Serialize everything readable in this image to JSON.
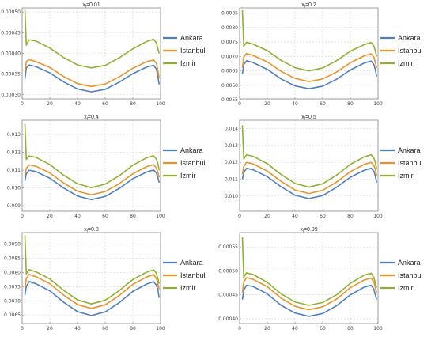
{
  "figure": {
    "series": [
      {
        "name": "Ankara",
        "color": "#4f7fbf"
      },
      {
        "name": "Istanbul",
        "color": "#e8932a"
      },
      {
        "name": "Izmir",
        "color": "#8fb032"
      }
    ]
  },
  "chart_data": [
    {
      "type": "line",
      "title": "xₗ=0.01",
      "title_sub": "l",
      "title_value": "0.01",
      "xlim": [
        0,
        100
      ],
      "xticks": [
        0,
        20,
        40,
        60,
        80,
        100
      ],
      "ylim": [
        0.00029,
        0.00051
      ],
      "yticks": [
        "0.00030",
        "0.00035",
        "0.00040",
        "0.00045",
        "0.00050"
      ],
      "yticks_num": [
        0.0003,
        0.00035,
        0.0004,
        0.00045,
        0.0005
      ],
      "legend": "right",
      "grid": true,
      "x": [
        2,
        3,
        5,
        10,
        20,
        30,
        40,
        50,
        60,
        70,
        80,
        90,
        95,
        97,
        98,
        99
      ],
      "series": [
        {
          "name": "Ankara",
          "values": [
            0.000338,
            0.000365,
            0.000372,
            0.000368,
            0.000353,
            0.000331,
            0.000314,
            0.000307,
            0.000313,
            0.00033,
            0.000351,
            0.000367,
            0.000371,
            0.000362,
            0.000345,
            0.000325
          ]
        },
        {
          "name": "Istanbul",
          "values": [
            0.000355,
            0.00038,
            0.000385,
            0.00038,
            0.000366,
            0.000344,
            0.000327,
            0.00032,
            0.000326,
            0.000343,
            0.000364,
            0.00038,
            0.000384,
            0.000376,
            0.00036,
            0.00034
          ]
        },
        {
          "name": "Izmir",
          "values": [
            0.000505,
            0.00042,
            0.000433,
            0.00043,
            0.000413,
            0.00039,
            0.000372,
            0.000365,
            0.000371,
            0.000389,
            0.000411,
            0.000429,
            0.000434,
            0.000425,
            0.000412,
            0.0004
          ]
        }
      ]
    },
    {
      "type": "line",
      "title": "xₗ=0.2",
      "title_sub": "l",
      "title_value": "0.2",
      "xlim": [
        0,
        100
      ],
      "xticks": [
        0,
        20,
        40,
        60,
        80,
        100
      ],
      "ylim": [
        0.00553,
        0.00868
      ],
      "yticks": [
        "0.0055",
        "0.0060",
        "0.0065",
        "0.0070",
        "0.0075",
        "0.0080",
        "0.0085"
      ],
      "yticks_num": [
        0.0055,
        0.006,
        0.0065,
        0.007,
        0.0075,
        0.008,
        0.0085
      ],
      "legend": "right",
      "grid": true,
      "x": [
        2,
        3,
        5,
        10,
        20,
        30,
        40,
        50,
        60,
        70,
        80,
        90,
        95,
        97,
        98,
        99
      ],
      "series": [
        {
          "name": "Ankara",
          "values": [
            0.0064,
            0.00672,
            0.00685,
            0.00678,
            0.00655,
            0.00622,
            0.00598,
            0.00588,
            0.00597,
            0.00621,
            0.00653,
            0.00677,
            0.00684,
            0.00672,
            0.00655,
            0.0063
          ]
        },
        {
          "name": "Istanbul",
          "values": [
            0.0066,
            0.00698,
            0.0071,
            0.00703,
            0.00681,
            0.00648,
            0.00624,
            0.00613,
            0.00622,
            0.00646,
            0.00678,
            0.00702,
            0.00709,
            0.00697,
            0.0068,
            0.0066
          ]
        },
        {
          "name": "Izmir",
          "values": [
            0.0086,
            0.00735,
            0.00749,
            0.00742,
            0.0072,
            0.00686,
            0.00661,
            0.0065,
            0.0066,
            0.00685,
            0.00718,
            0.00741,
            0.00748,
            0.00736,
            0.0072,
            0.007
          ]
        }
      ]
    },
    {
      "type": "line",
      "title": "xₗ=0.4",
      "title_sub": "l",
      "title_value": "0.4",
      "xlim": [
        0,
        100
      ],
      "xticks": [
        0,
        20,
        40,
        60,
        80,
        100
      ],
      "ylim": [
        0.0087,
        0.0138
      ],
      "yticks": [
        "0.009",
        "0.010",
        "0.011",
        "0.012",
        "0.013"
      ],
      "yticks_num": [
        0.009,
        0.01,
        0.011,
        0.012,
        0.013
      ],
      "legend": "right",
      "grid": true,
      "x": [
        2,
        3,
        5,
        10,
        20,
        30,
        40,
        50,
        60,
        70,
        80,
        90,
        95,
        97,
        98,
        99
      ],
      "series": [
        {
          "name": "Ankara",
          "values": [
            0.0104,
            0.0108,
            0.011,
            0.01092,
            0.01055,
            0.01,
            0.00955,
            0.00935,
            0.00953,
            0.00997,
            0.01052,
            0.0109,
            0.01101,
            0.01085,
            0.0106,
            0.0103
          ]
        },
        {
          "name": "Istanbul",
          "values": [
            0.0107,
            0.0111,
            0.0113,
            0.01122,
            0.01085,
            0.01028,
            0.00982,
            0.00962,
            0.0098,
            0.01024,
            0.0108,
            0.0112,
            0.01131,
            0.01112,
            0.0109,
            0.0106
          ]
        },
        {
          "name": "Izmir",
          "values": [
            0.0136,
            0.0116,
            0.0118,
            0.01172,
            0.01132,
            0.01072,
            0.01024,
            0.01002,
            0.01022,
            0.01068,
            0.01128,
            0.0117,
            0.01181,
            0.01162,
            0.0114,
            0.011
          ]
        }
      ]
    },
    {
      "type": "line",
      "title": "xₗ=0.5",
      "title_sub": "l",
      "title_value": "0.5",
      "xlim": [
        0,
        100
      ],
      "xticks": [
        0,
        20,
        40,
        60,
        80,
        100
      ],
      "ylim": [
        0.0091,
        0.0145
      ],
      "yticks": [
        "0.010",
        "0.011",
        "0.012",
        "0.013",
        "0.014"
      ],
      "yticks_num": [
        0.01,
        0.011,
        0.012,
        0.013,
        0.014
      ],
      "legend": "right",
      "grid": true,
      "x": [
        2,
        3,
        5,
        10,
        20,
        30,
        40,
        50,
        60,
        70,
        80,
        90,
        95,
        97,
        98,
        99
      ],
      "series": [
        {
          "name": "Ankara",
          "values": [
            0.011,
            0.0114,
            0.01165,
            0.01155,
            0.01115,
            0.01055,
            0.01005,
            0.00985,
            0.01003,
            0.01052,
            0.01112,
            0.01153,
            0.01165,
            0.01148,
            0.0112,
            0.0108
          ]
        },
        {
          "name": "Istanbul",
          "values": [
            0.0113,
            0.01175,
            0.012,
            0.0119,
            0.01148,
            0.01087,
            0.01036,
            0.01015,
            0.01034,
            0.01083,
            0.01145,
            0.01188,
            0.012,
            0.01182,
            0.0116,
            0.0112
          ]
        },
        {
          "name": "Izmir",
          "values": [
            0.0142,
            0.0122,
            0.01245,
            0.01235,
            0.01192,
            0.01128,
            0.01075,
            0.01053,
            0.01073,
            0.01124,
            0.01188,
            0.01233,
            0.01245,
            0.01226,
            0.012,
            0.0116
          ]
        }
      ]
    },
    {
      "type": "line",
      "title": "xₗ=0.8",
      "title_sub": "l",
      "title_value": "0.8",
      "xlim": [
        0,
        100
      ],
      "xticks": [
        0,
        20,
        40,
        60,
        80,
        100
      ],
      "ylim": [
        0.0062,
        0.0094
      ],
      "yticks": [
        "0.0065",
        "0.0070",
        "0.0075",
        "0.0080",
        "0.0085",
        "0.0090"
      ],
      "yticks_num": [
        0.0065,
        0.007,
        0.0075,
        0.008,
        0.0085,
        0.009
      ],
      "legend": "right",
      "grid": true,
      "x": [
        2,
        3,
        5,
        10,
        20,
        30,
        40,
        50,
        60,
        70,
        80,
        90,
        95,
        97,
        98,
        99
      ],
      "series": [
        {
          "name": "Ankara",
          "values": [
            0.0072,
            0.0075,
            0.00768,
            0.0076,
            0.00735,
            0.00695,
            0.00662,
            0.00648,
            0.00661,
            0.00693,
            0.00733,
            0.00759,
            0.00767,
            0.00755,
            0.0074,
            0.0071
          ]
        },
        {
          "name": "Istanbul",
          "values": [
            0.00745,
            0.00778,
            0.00793,
            0.00785,
            0.0076,
            0.0072,
            0.00687,
            0.00673,
            0.00686,
            0.00718,
            0.00758,
            0.00784,
            0.00792,
            0.0078,
            0.0076,
            0.0074
          ]
        },
        {
          "name": "Izmir",
          "values": [
            0.0093,
            0.00795,
            0.0081,
            0.00802,
            0.00777,
            0.00737,
            0.00703,
            0.00689,
            0.00702,
            0.00735,
            0.00775,
            0.00801,
            0.00809,
            0.00797,
            0.0078,
            0.0076
          ]
        }
      ]
    },
    {
      "type": "line",
      "title": "xₗ=0.99",
      "title_sub": "l",
      "title_value": "0.99",
      "xlim": [
        0,
        100
      ],
      "xticks": [
        0,
        20,
        40,
        60,
        80,
        100
      ],
      "ylim": [
        0.00039,
        0.00058
      ],
      "yticks": [
        "0.00040",
        "0.00045",
        "0.00050",
        "0.00055"
      ],
      "yticks_num": [
        0.0004,
        0.00045,
        0.0005,
        0.00055
      ],
      "legend": "right",
      "grid": true,
      "x": [
        2,
        3,
        5,
        10,
        20,
        30,
        40,
        50,
        60,
        70,
        80,
        90,
        95,
        97,
        98,
        99
      ],
      "series": [
        {
          "name": "Ankara",
          "values": [
            0.00044,
            0.00046,
            0.00047,
            0.000467,
            0.000452,
            0.000428,
            0.000412,
            0.000405,
            0.000411,
            0.000427,
            0.00045,
            0.000466,
            0.00047,
            0.000462,
            0.00045,
            0.00044
          ]
        },
        {
          "name": "Istanbul",
          "values": [
            0.000455,
            0.000477,
            0.000486,
            0.000482,
            0.000467,
            0.000443,
            0.000426,
            0.000419,
            0.000425,
            0.000441,
            0.000465,
            0.000481,
            0.000485,
            0.000477,
            0.000465,
            0.000455
          ]
        },
        {
          "name": "Izmir",
          "values": [
            0.00057,
            0.000487,
            0.000496,
            0.000492,
            0.000476,
            0.000452,
            0.000435,
            0.000428,
            0.000434,
            0.00045,
            0.000474,
            0.000491,
            0.000495,
            0.000486,
            0.000475,
            0.000465
          ]
        }
      ]
    }
  ]
}
